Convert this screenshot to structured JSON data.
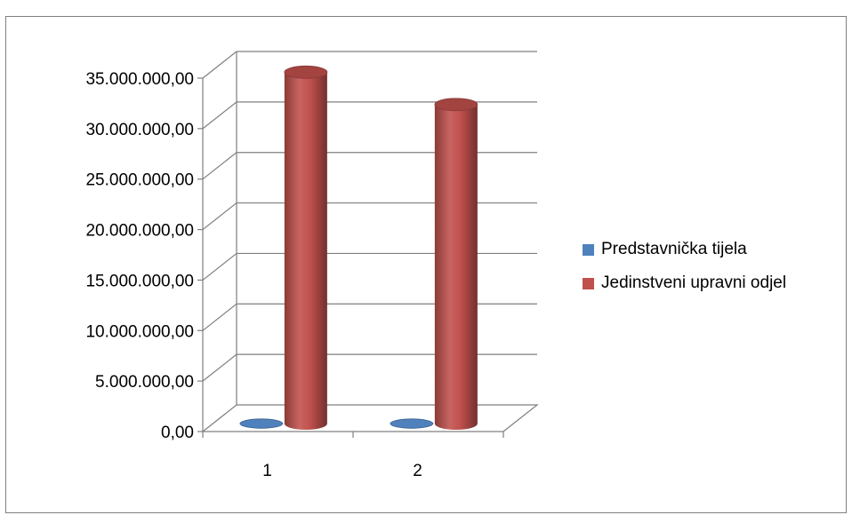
{
  "chart_data": {
    "type": "bar",
    "style": "3d-cylinder",
    "categories": [
      "1",
      "2"
    ],
    "series": [
      {
        "name": "Predstavnička tijela",
        "color": "#4f81bd",
        "values": [
          0,
          0
        ]
      },
      {
        "name": "Jedinstveni upravni odjel",
        "color": "#c0504d",
        "values": [
          34800000,
          31600000
        ]
      }
    ],
    "ylim": [
      0,
      35000000
    ],
    "ytick_labels": [
      "0,00",
      "5.000.000,00",
      "10.000.000,00",
      "15.000.000,00",
      "20.000.000,00",
      "25.000.000,00",
      "30.000.000,00",
      "35.000.000,00"
    ],
    "grid": true,
    "legend_position": "right",
    "title": "",
    "xlabel": "",
    "ylabel": ""
  }
}
